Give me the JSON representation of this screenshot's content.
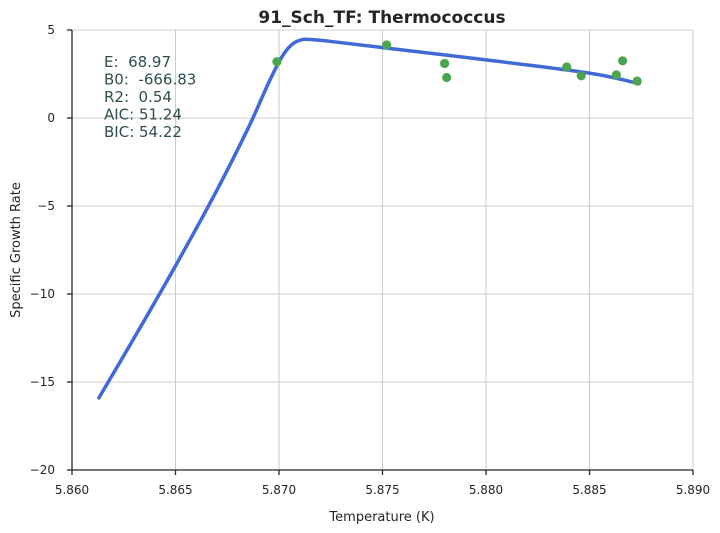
{
  "chart_data": {
    "type": "scatter",
    "title": "91_Sch_TF: Thermococcus",
    "xlabel": "Temperature (K)",
    "ylabel": "Specific Growth Rate",
    "xlim": [
      5.86,
      5.89
    ],
    "ylim": [
      -20,
      5
    ],
    "xticks": [
      5.86,
      5.865,
      5.87,
      5.875,
      5.88,
      5.885,
      5.89
    ],
    "xtick_labels": [
      "5.860",
      "5.865",
      "5.870",
      "5.875",
      "5.880",
      "5.885",
      "5.890"
    ],
    "yticks": [
      5,
      0,
      -5,
      -10,
      -15,
      -20
    ],
    "ytick_labels": [
      "5",
      "0",
      "−5",
      "−10",
      "−15",
      "−20"
    ],
    "grid": true,
    "annotations": [
      "E:  68.97",
      "B0:  -666.83",
      "R2:  0.54",
      "AIC: 51.24",
      "BIC: 54.22"
    ],
    "points": [
      {
        "x": 5.8699,
        "y": 3.2
      },
      {
        "x": 5.8752,
        "y": 4.15
      },
      {
        "x": 5.878,
        "y": 3.1
      },
      {
        "x": 5.8781,
        "y": 2.3
      },
      {
        "x": 5.8839,
        "y": 2.9
      },
      {
        "x": 5.8846,
        "y": 2.4
      },
      {
        "x": 5.8863,
        "y": 2.45
      },
      {
        "x": 5.8866,
        "y": 3.25
      },
      {
        "x": 5.8873,
        "y": 2.1
      }
    ],
    "fit_curve": [
      {
        "x": 5.8613,
        "y": -15.9
      },
      {
        "x": 5.863,
        "y": -12.5
      },
      {
        "x": 5.865,
        "y": -8.4
      },
      {
        "x": 5.867,
        "y": -4.1
      },
      {
        "x": 5.8685,
        "y": -0.6
      },
      {
        "x": 5.8695,
        "y": 2.0
      },
      {
        "x": 5.8701,
        "y": 3.4
      },
      {
        "x": 5.8706,
        "y": 4.15
      },
      {
        "x": 5.8711,
        "y": 4.45
      },
      {
        "x": 5.8716,
        "y": 4.45
      },
      {
        "x": 5.8725,
        "y": 4.35
      },
      {
        "x": 5.875,
        "y": 4.0
      },
      {
        "x": 5.88,
        "y": 3.3
      },
      {
        "x": 5.885,
        "y": 2.55
      },
      {
        "x": 5.8874,
        "y": 1.95
      }
    ],
    "colors": {
      "points": "#4da64d",
      "curve": "#4169d8",
      "annotation_text": "#2f4f4f"
    }
  }
}
